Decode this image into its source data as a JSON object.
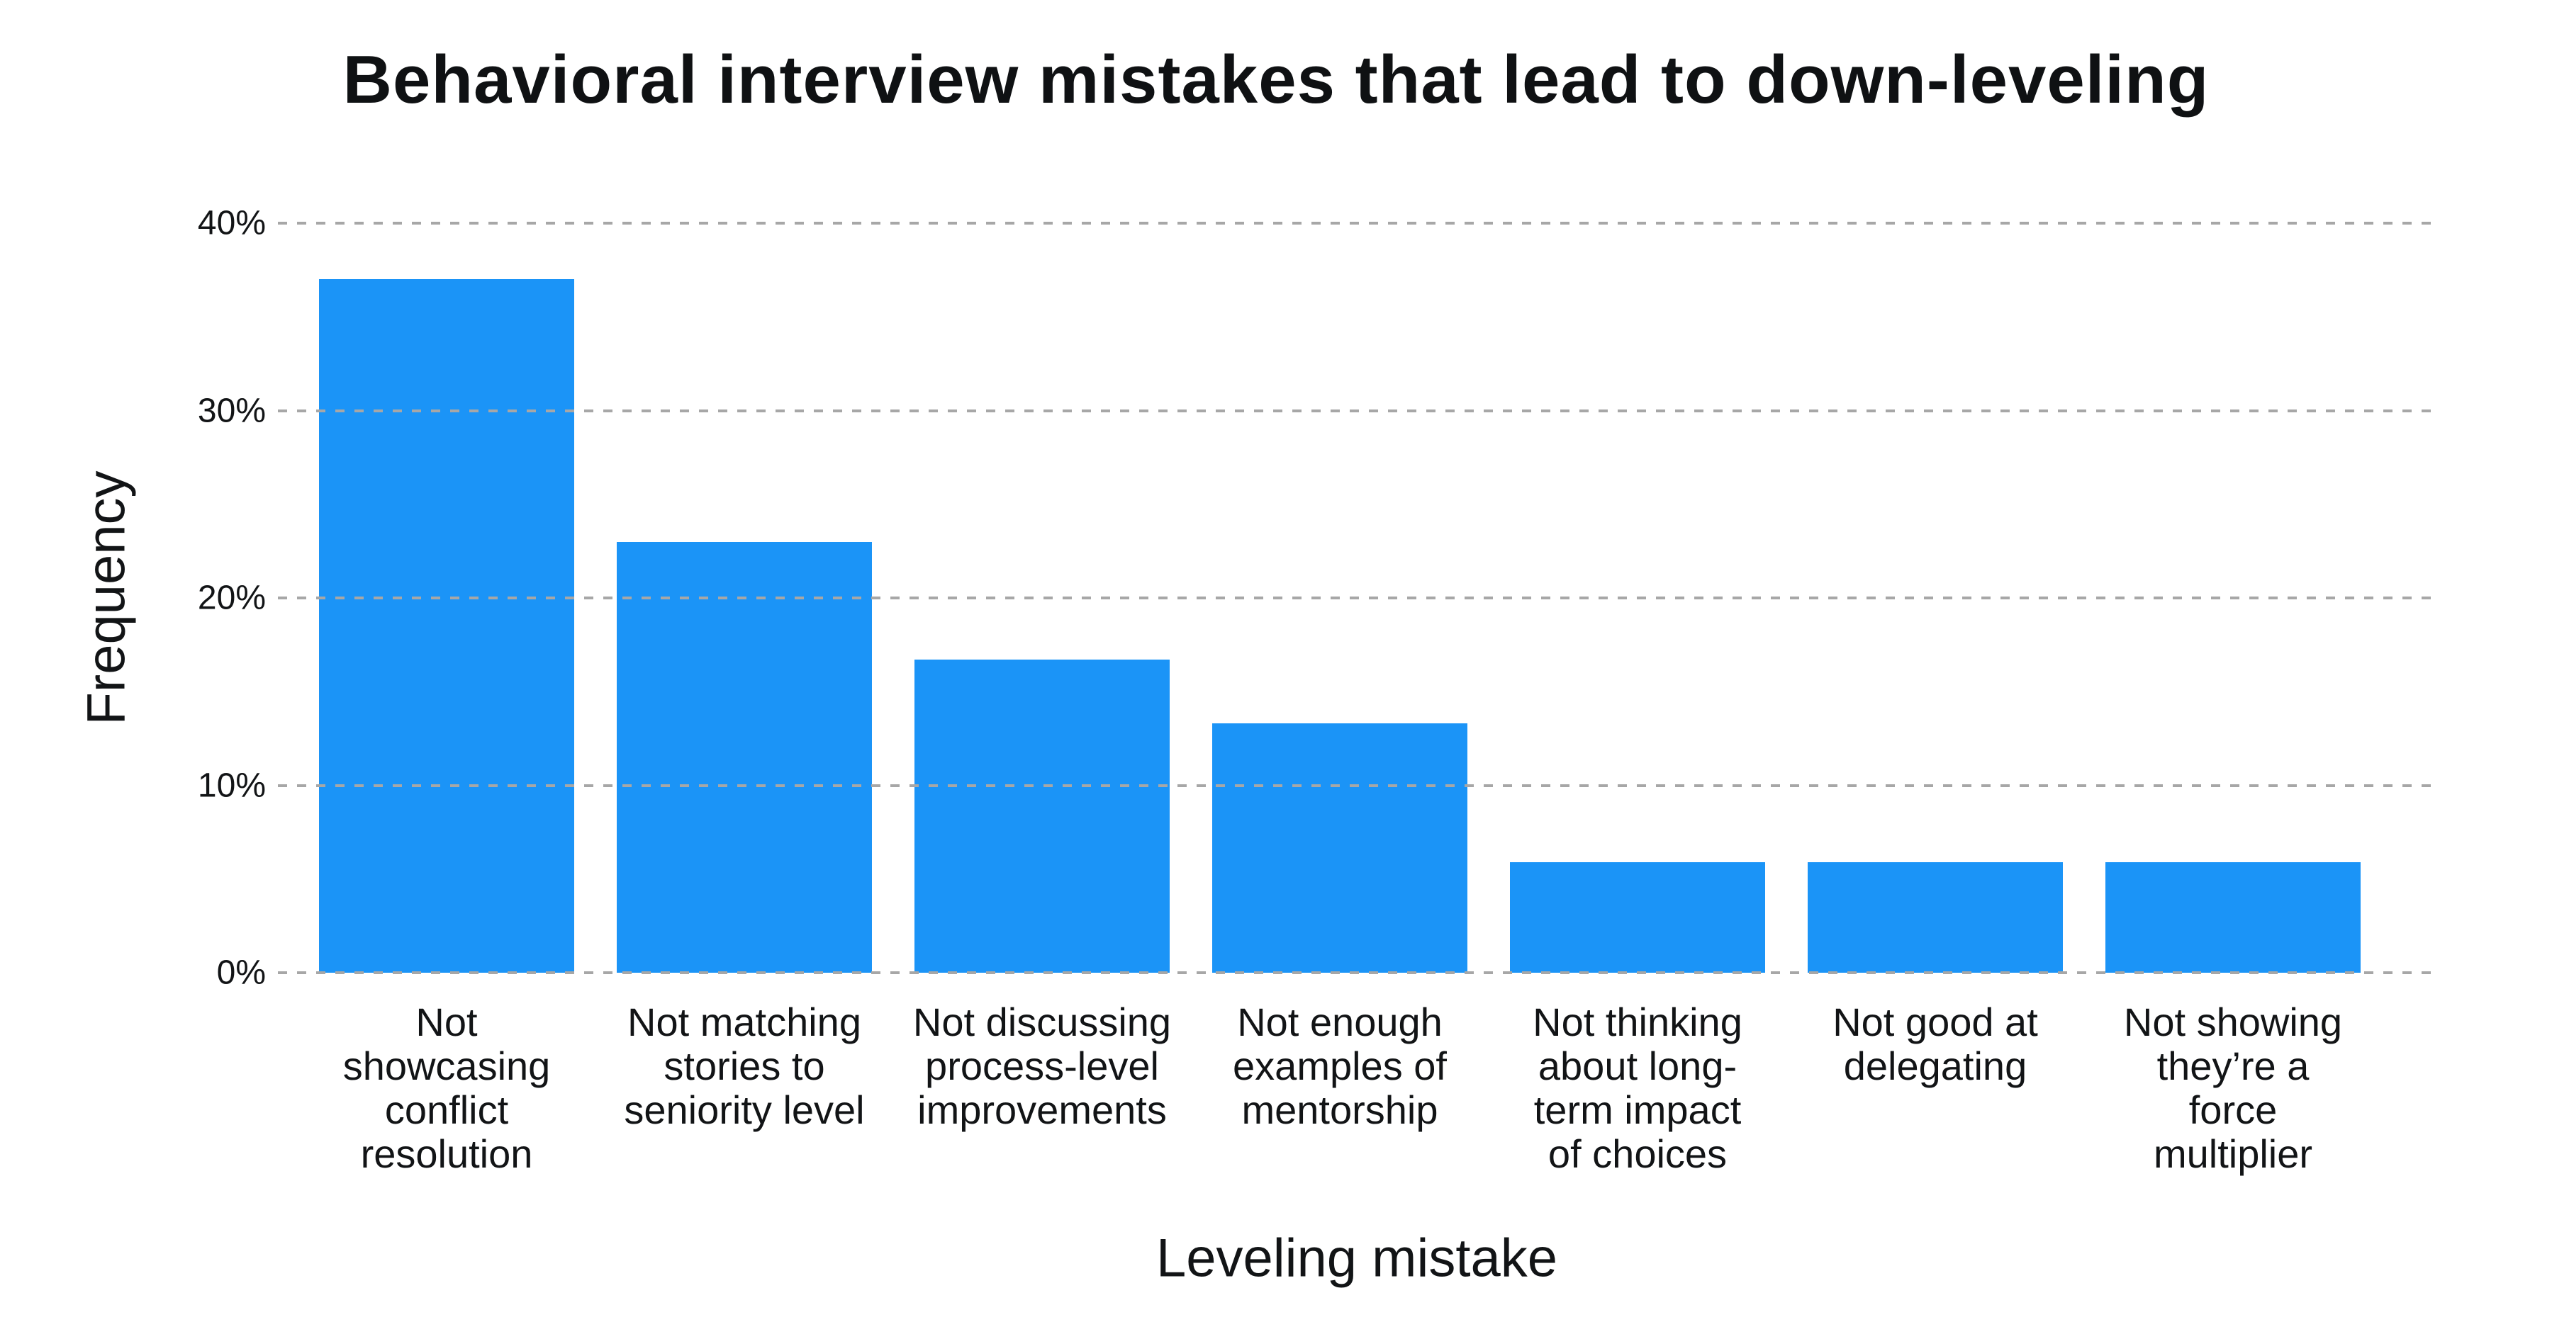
{
  "title": "Behavioral interview mistakes that lead to down-leveling",
  "y_axis": {
    "title": "Frequency",
    "max": 40,
    "ticks": [
      {
        "label": "40%",
        "value": 40
      },
      {
        "label": "30%",
        "value": 30
      },
      {
        "label": "20%",
        "value": 20
      },
      {
        "label": "10%",
        "value": 10
      },
      {
        "label": "0%",
        "value": 0
      }
    ]
  },
  "x_axis": {
    "title": "Leveling mistake",
    "labels": [
      "Not\nshowcasing\nconflict\nresolution",
      "Not matching\nstories to\nseniority level",
      "Not discussing\nprocess-level\nimprovements",
      "Not enough\nexamples of\nmentorship",
      "Not thinking\nabout long-\nterm impact\nof  choices",
      "Not good at\ndelegating",
      "Not showing\nthey’re a\nforce\nmultiplier"
    ]
  },
  "colors": {
    "bar": "#1B94F7",
    "gridline": "#A7A7A7",
    "text": "#121416"
  },
  "chart_data": {
    "type": "bar",
    "title": "Behavioral interview mistakes that lead to down-leveling",
    "xlabel": "Leveling mistake",
    "ylabel": "Frequency",
    "categories": [
      "Not showcasing conflict resolution",
      "Not matching stories to seniority level",
      "Not discussing process-level improvements",
      "Not enough examples of mentorship",
      "Not thinking about long-term impact of choices",
      "Not good at delegating",
      "Not showing they’re a force multiplier"
    ],
    "values": [
      37.0,
      23.0,
      16.7,
      13.3,
      5.9,
      5.9,
      5.9
    ],
    "value_unit": "%",
    "ylim": [
      0,
      40
    ],
    "grid": "horizontal-dashed",
    "legend": "none",
    "bar_color": "#1B94F7"
  }
}
